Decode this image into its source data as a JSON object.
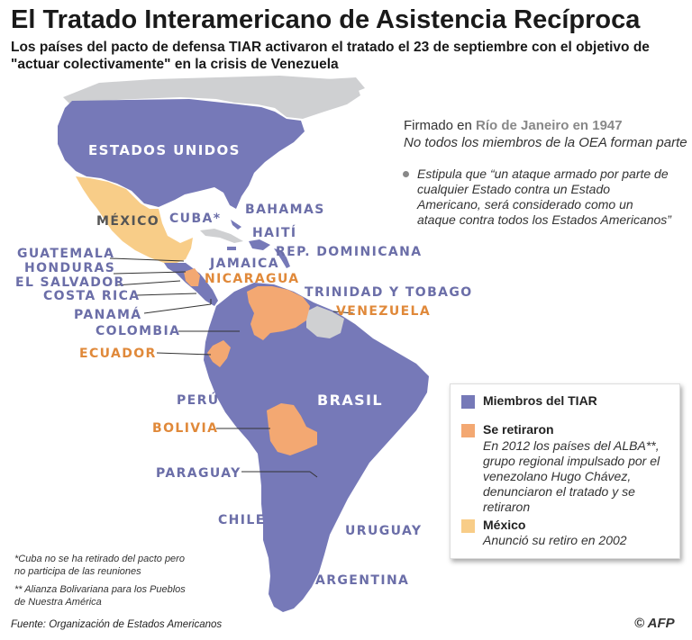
{
  "title": "El Tratado Interamericano de Asistencia Recíproca",
  "subtitle": "Los países del pacto de defensa TIAR activaron el tratado el 23 de septiembre con el objetivo de \"actuar colectivamente\" en la crisis de Venezuela",
  "info": {
    "signed_prefix": "Firmado en ",
    "signed_place": "Río de Janeiro en 1947",
    "note": "No todos los miembros de la OEA forman parte",
    "bullet": "Estipula que “un ataque armado por parte de cualquier Estado contra un Estado Americano, será considerado como un ataque contra todos los Estados Americanos”"
  },
  "countries": {
    "estados_unidos": "ESTADOS UNIDOS",
    "mexico": "MÉXICO",
    "cuba": "CUBA*",
    "bahamas": "BAHAMAS",
    "haiti": "HAITÍ",
    "rep_dominicana": "REP. DOMINICANA",
    "guatemala": "GUATEMALA",
    "honduras": "HONDURAS",
    "el_salvador": "EL SALVADOR",
    "costa_rica": "COSTA RICA",
    "panama": "PANAMÁ",
    "jamaica": "JAMAICA",
    "nicaragua": "NICARAGUA",
    "trinidad": "TRINIDAD Y TOBAGO",
    "venezuela": "VENEZUELA",
    "colombia": "COLOMBIA",
    "ecuador": "ECUADOR",
    "peru": "PERÚ",
    "brasil": "BRASIL",
    "bolivia": "BOLIVIA",
    "paraguay": "PARAGUAY",
    "chile": "CHILE",
    "uruguay": "URUGUAY",
    "argentina": "ARGENTINA"
  },
  "legend": {
    "members": {
      "label": "Miembros del TIAR",
      "color": "#7679b8"
    },
    "retired": {
      "label": "Se retiraron",
      "desc": "En 2012 los países del ALBA**, grupo regional impulsado por el venezolano Hugo Chávez, denunciaron el tratado y se retiraron",
      "color": "#f3a872"
    },
    "mexico": {
      "label": "México",
      "desc": "Anunció su retiro en 2002",
      "color": "#f8cd88"
    }
  },
  "footnotes": {
    "cuba": "*Cuba no se ha retirado del pacto pero no participa de las reuniones",
    "alba": "** Alianza Bolivariana para los Pueblos de Nuestra América"
  },
  "source": "Fuente: Organización de Estados Americanos",
  "credit": "© AFP"
}
